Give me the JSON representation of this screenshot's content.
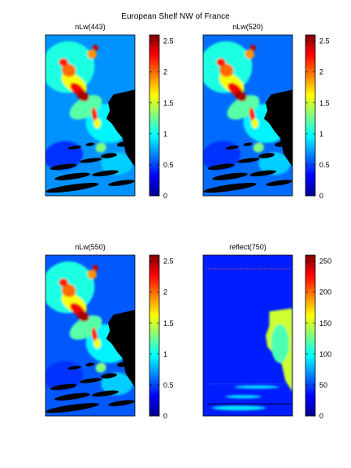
{
  "title": "European Shelf NW of France",
  "chart_data": [
    {
      "type": "heatmap",
      "title": "nLw(443)",
      "colorbar": {
        "range": [
          0,
          2.6
        ],
        "ticks": [
          0,
          0.5,
          1,
          1.5,
          2,
          2.5
        ],
        "tick_labels": [
          "0",
          "0.5",
          "1",
          "1.5",
          "2",
          "2.5"
        ],
        "colormap": "jet"
      },
      "background_value": 0.7,
      "grid": false
    },
    {
      "type": "heatmap",
      "title": "nLw(520)",
      "colorbar": {
        "range": [
          0,
          2.6
        ],
        "ticks": [
          0,
          0.5,
          1,
          1.5,
          2,
          2.5
        ],
        "tick_labels": [
          "0",
          "0.5",
          "1",
          "1.5",
          "2",
          "2.5"
        ],
        "colormap": "jet"
      },
      "background_value": 0.6,
      "grid": false
    },
    {
      "type": "heatmap",
      "title": "nLw(550)",
      "colorbar": {
        "range": [
          0,
          2.6
        ],
        "ticks": [
          0,
          0.5,
          1,
          1.5,
          2,
          2.5
        ],
        "tick_labels": [
          "0",
          "0.5",
          "1",
          "1.5",
          "2",
          "2.5"
        ],
        "colormap": "jet"
      },
      "background_value": 0.55,
      "grid": false
    },
    {
      "type": "heatmap",
      "title": "reflect(750)",
      "colorbar": {
        "range": [
          0,
          260
        ],
        "ticks": [
          0,
          50,
          100,
          150,
          200,
          250
        ],
        "tick_labels": [
          "0",
          "50",
          "100",
          "150",
          "200",
          "250"
        ],
        "colormap": "jet"
      },
      "background_value": 40,
      "land_value": 150,
      "grid": false
    }
  ]
}
